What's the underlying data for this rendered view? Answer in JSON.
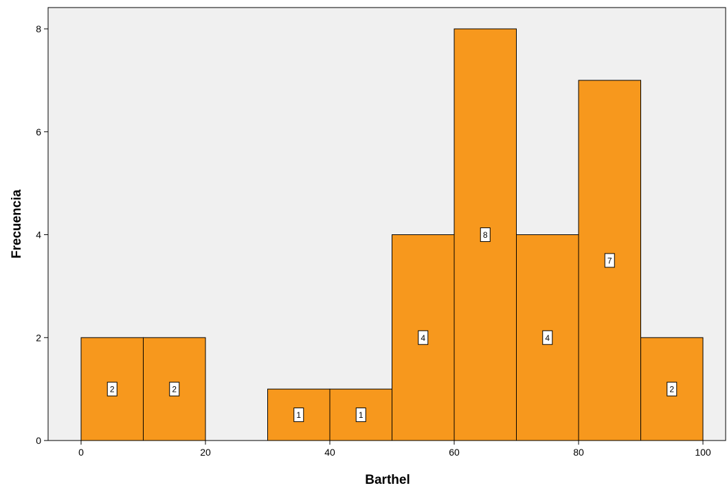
{
  "chart_data": {
    "type": "bar",
    "subtype": "histogram",
    "xlabel": "Barthel",
    "ylabel": "Frecuencia",
    "xlim": [
      -7,
      103
    ],
    "ylim": [
      0,
      8.5
    ],
    "xticks": [
      0,
      20,
      40,
      60,
      80,
      100
    ],
    "yticks": [
      0,
      2,
      4,
      6,
      8
    ],
    "bin_width": 10,
    "bins": [
      {
        "start": 0,
        "end": 10,
        "value": 2
      },
      {
        "start": 10,
        "end": 20,
        "value": 2
      },
      {
        "start": 30,
        "end": 40,
        "value": 1
      },
      {
        "start": 40,
        "end": 50,
        "value": 1
      },
      {
        "start": 50,
        "end": 60,
        "value": 4
      },
      {
        "start": 60,
        "end": 70,
        "value": 8
      },
      {
        "start": 70,
        "end": 80,
        "value": 4
      },
      {
        "start": 80,
        "end": 90,
        "value": 7
      },
      {
        "start": 90,
        "end": 100,
        "value": 2
      }
    ],
    "data_labels": true,
    "grid": false,
    "colors": {
      "bar": "#F7981D",
      "bar_edge": "#000000",
      "plot_background": "#F0F0F0",
      "label_box": "#FFFFFF"
    }
  }
}
